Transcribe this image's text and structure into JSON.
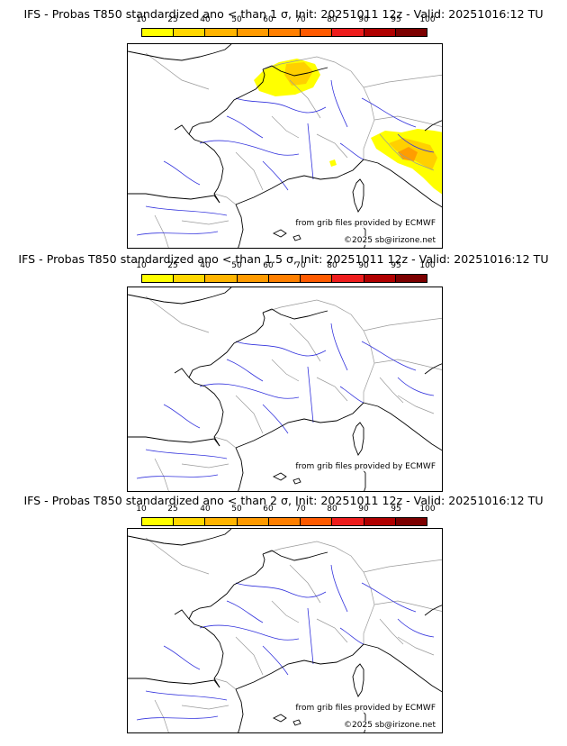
{
  "colorbar": {
    "ticks": [
      "10",
      "25",
      "40",
      "50",
      "60",
      "70",
      "80",
      "90",
      "95",
      "100"
    ],
    "colors": [
      "#ffff00",
      "#ffd700",
      "#ffb400",
      "#ff9a00",
      "#ff7f00",
      "#ff5a00",
      "#ee1d1d",
      "#b00000",
      "#7c0000"
    ]
  },
  "credits": {
    "source": "from grib files provided by ECMWF",
    "copyright": "©2025 sb@irizone.net"
  },
  "map_colors": {
    "coast": "#000000",
    "rivers": "#3333dd",
    "borders": "#9a9a9a",
    "prob_low": "#ffff00",
    "prob_mid": "#ffd000",
    "prob_high": "#ff9d00"
  },
  "panels": [
    {
      "title": "IFS - Probas T850  standardized ano < than 1 σ, Init: 20251011 12z - Valid: 20251016:12 TU",
      "has_probability_areas": true
    },
    {
      "title": "IFS - Probas T850  standardized ano < than 1.5 σ, Init: 20251011 12z - Valid: 20251016:12 TU",
      "has_probability_areas": false
    },
    {
      "title": "IFS - Probas T850  standardized ano < than 2 σ, Init: 20251011 12z - Valid: 20251016:12 TU",
      "has_probability_areas": false
    }
  ]
}
